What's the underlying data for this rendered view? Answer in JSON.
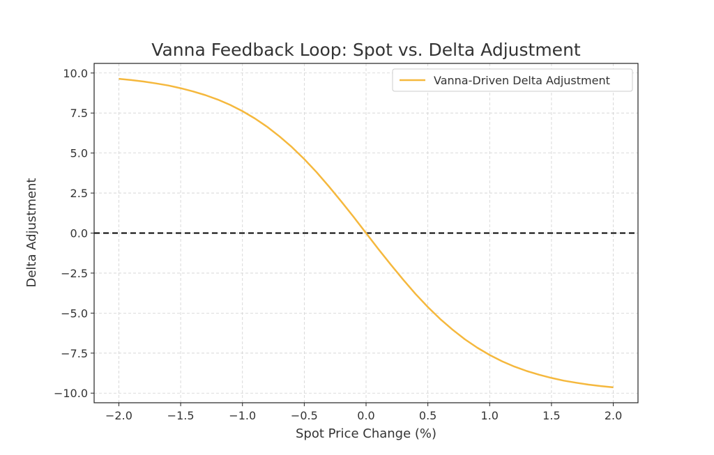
{
  "chart_data": {
    "type": "line",
    "title": "Vanna Feedback Loop: Spot vs. Delta Adjustment",
    "xlabel": "Spot Price Change (%)",
    "ylabel": "Delta Adjustment",
    "xlim": [
      -2.2,
      2.2
    ],
    "ylim": [
      -10.6,
      10.6
    ],
    "xticks": [
      -2.0,
      -1.5,
      -1.0,
      -0.5,
      0.0,
      0.5,
      1.0,
      1.5,
      2.0
    ],
    "xtick_labels": [
      "−2.0",
      "−1.5",
      "−1.0",
      "−0.5",
      "0.0",
      "0.5",
      "1.0",
      "1.5",
      "2.0"
    ],
    "yticks": [
      10.0,
      7.5,
      5.0,
      2.5,
      0.0,
      -2.5,
      -5.0,
      -7.5,
      -10.0
    ],
    "ytick_labels": [
      "10.0",
      "7.5",
      "5.0",
      "2.5",
      "0.0",
      "−2.5",
      "−5.0",
      "−7.5",
      "−10.0"
    ],
    "grid": true,
    "legend_placement": "top-right",
    "reference_line": {
      "y": 0,
      "style": "dashed",
      "color": "#000000"
    },
    "series": [
      {
        "name": "Vanna-Driven Delta Adjustment",
        "color": "#f5b83d",
        "x": [
          -2.0,
          -1.9,
          -1.8,
          -1.7,
          -1.6,
          -1.5,
          -1.4,
          -1.3,
          -1.2,
          -1.1,
          -1.0,
          -0.9,
          -0.8,
          -0.7,
          -0.6,
          -0.5,
          -0.4,
          -0.3,
          -0.2,
          -0.1,
          0.0,
          0.1,
          0.2,
          0.3,
          0.4,
          0.5,
          0.6,
          0.7,
          0.8,
          0.9,
          1.0,
          1.1,
          1.2,
          1.3,
          1.4,
          1.5,
          1.6,
          1.7,
          1.8,
          1.9,
          2.0
        ],
        "y": [
          9.64,
          9.56,
          9.47,
          9.35,
          9.22,
          9.05,
          8.85,
          8.62,
          8.34,
          8.01,
          7.62,
          7.16,
          6.64,
          6.04,
          5.37,
          4.62,
          3.8,
          2.91,
          1.97,
          1.0,
          0.0,
          -1.0,
          -1.97,
          -2.91,
          -3.8,
          -4.62,
          -5.37,
          -6.04,
          -6.64,
          -7.16,
          -7.62,
          -8.01,
          -8.34,
          -8.62,
          -8.85,
          -9.05,
          -9.22,
          -9.35,
          -9.47,
          -9.56,
          -9.64
        ]
      }
    ]
  }
}
